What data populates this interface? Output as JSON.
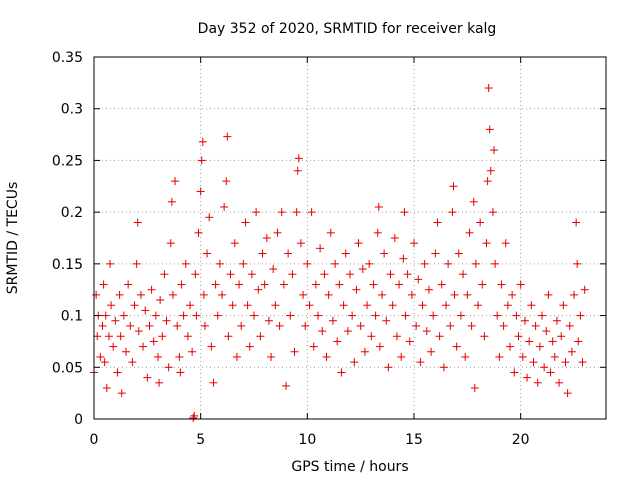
{
  "chart_data": {
    "type": "scatter",
    "title": "Day 352 of 2020, SRMTID for receiver kalg",
    "xlabel": "GPS time / hours",
    "ylabel": "SRMTID / TECUs",
    "xlim": [
      0,
      24
    ],
    "ylim": [
      0,
      0.35
    ],
    "x_ticks": [
      0,
      5,
      10,
      15,
      20
    ],
    "x_tick_labels": [
      "0",
      "5",
      "10",
      "15",
      "20"
    ],
    "y_ticks": [
      0,
      0.05,
      0.1,
      0.15,
      0.2,
      0.25,
      0.3,
      0.35
    ],
    "y_tick_labels": [
      "0",
      "0.05",
      "0.1",
      "0.15",
      "0.2",
      "0.25",
      "0.3",
      "0.35"
    ],
    "grid": true,
    "marker": "plus",
    "color": "#e00000",
    "series": [
      {
        "points": [
          [
            0.0,
            0.045
          ],
          [
            0.1,
            0.12
          ],
          [
            0.15,
            0.08
          ],
          [
            0.2,
            0.1
          ],
          [
            0.3,
            0.06
          ],
          [
            0.4,
            0.09
          ],
          [
            0.45,
            0.13
          ],
          [
            0.5,
            0.055
          ],
          [
            0.55,
            0.1
          ],
          [
            0.6,
            0.03
          ],
          [
            0.7,
            0.08
          ],
          [
            0.75,
            0.15
          ],
          [
            0.8,
            0.11
          ],
          [
            0.9,
            0.07
          ],
          [
            1.0,
            0.095
          ],
          [
            1.1,
            0.045
          ],
          [
            1.2,
            0.12
          ],
          [
            1.25,
            0.08
          ],
          [
            1.3,
            0.025
          ],
          [
            1.4,
            0.1
          ],
          [
            1.5,
            0.065
          ],
          [
            1.6,
            0.13
          ],
          [
            1.7,
            0.09
          ],
          [
            1.8,
            0.055
          ],
          [
            1.9,
            0.11
          ],
          [
            2.0,
            0.15
          ],
          [
            2.05,
            0.19
          ],
          [
            2.1,
            0.085
          ],
          [
            2.2,
            0.12
          ],
          [
            2.3,
            0.07
          ],
          [
            2.4,
            0.105
          ],
          [
            2.5,
            0.04
          ],
          [
            2.6,
            0.09
          ],
          [
            2.7,
            0.125
          ],
          [
            2.8,
            0.075
          ],
          [
            2.9,
            0.1
          ],
          [
            3.0,
            0.06
          ],
          [
            3.05,
            0.035
          ],
          [
            3.1,
            0.115
          ],
          [
            3.2,
            0.08
          ],
          [
            3.3,
            0.14
          ],
          [
            3.4,
            0.095
          ],
          [
            3.5,
            0.05
          ],
          [
            3.6,
            0.17
          ],
          [
            3.65,
            0.21
          ],
          [
            3.7,
            0.12
          ],
          [
            3.8,
            0.23
          ],
          [
            3.9,
            0.09
          ],
          [
            4.0,
            0.06
          ],
          [
            4.05,
            0.045
          ],
          [
            4.1,
            0.13
          ],
          [
            4.2,
            0.1
          ],
          [
            4.3,
            0.15
          ],
          [
            4.4,
            0.08
          ],
          [
            4.5,
            0.11
          ],
          [
            4.6,
            0.065
          ],
          [
            4.65,
            0.001
          ],
          [
            4.7,
            0.003
          ],
          [
            4.75,
            0.14
          ],
          [
            4.8,
            0.1
          ],
          [
            4.9,
            0.18
          ],
          [
            5.0,
            0.22
          ],
          [
            5.05,
            0.25
          ],
          [
            5.1,
            0.268
          ],
          [
            5.15,
            0.12
          ],
          [
            5.2,
            0.09
          ],
          [
            5.3,
            0.16
          ],
          [
            5.4,
            0.195
          ],
          [
            5.5,
            0.07
          ],
          [
            5.6,
            0.035
          ],
          [
            5.7,
            0.13
          ],
          [
            5.8,
            0.1
          ],
          [
            5.9,
            0.15
          ],
          [
            6.0,
            0.12
          ],
          [
            6.1,
            0.205
          ],
          [
            6.2,
            0.23
          ],
          [
            6.25,
            0.273
          ],
          [
            6.3,
            0.08
          ],
          [
            6.4,
            0.14
          ],
          [
            6.5,
            0.11
          ],
          [
            6.6,
            0.17
          ],
          [
            6.7,
            0.06
          ],
          [
            6.8,
            0.13
          ],
          [
            6.9,
            0.09
          ],
          [
            7.0,
            0.15
          ],
          [
            7.1,
            0.19
          ],
          [
            7.2,
            0.11
          ],
          [
            7.3,
            0.07
          ],
          [
            7.4,
            0.14
          ],
          [
            7.5,
            0.1
          ],
          [
            7.6,
            0.2
          ],
          [
            7.7,
            0.125
          ],
          [
            7.8,
            0.08
          ],
          [
            7.9,
            0.16
          ],
          [
            8.0,
            0.13
          ],
          [
            8.1,
            0.175
          ],
          [
            8.2,
            0.095
          ],
          [
            8.3,
            0.06
          ],
          [
            8.4,
            0.145
          ],
          [
            8.5,
            0.11
          ],
          [
            8.6,
            0.18
          ],
          [
            8.7,
            0.09
          ],
          [
            8.8,
            0.2
          ],
          [
            8.9,
            0.13
          ],
          [
            9.0,
            0.032
          ],
          [
            9.1,
            0.16
          ],
          [
            9.2,
            0.1
          ],
          [
            9.3,
            0.14
          ],
          [
            9.4,
            0.065
          ],
          [
            9.5,
            0.2
          ],
          [
            9.55,
            0.24
          ],
          [
            9.6,
            0.252
          ],
          [
            9.7,
            0.17
          ],
          [
            9.8,
            0.12
          ],
          [
            9.9,
            0.09
          ],
          [
            10.0,
            0.15
          ],
          [
            10.1,
            0.11
          ],
          [
            10.2,
            0.2
          ],
          [
            10.3,
            0.07
          ],
          [
            10.4,
            0.13
          ],
          [
            10.5,
            0.1
          ],
          [
            10.6,
            0.165
          ],
          [
            10.7,
            0.085
          ],
          [
            10.8,
            0.14
          ],
          [
            10.9,
            0.06
          ],
          [
            11.0,
            0.12
          ],
          [
            11.1,
            0.18
          ],
          [
            11.2,
            0.095
          ],
          [
            11.3,
            0.15
          ],
          [
            11.4,
            0.075
          ],
          [
            11.5,
            0.13
          ],
          [
            11.6,
            0.045
          ],
          [
            11.7,
            0.11
          ],
          [
            11.8,
            0.16
          ],
          [
            11.9,
            0.085
          ],
          [
            12.0,
            0.14
          ],
          [
            12.1,
            0.1
          ],
          [
            12.2,
            0.055
          ],
          [
            12.3,
            0.125
          ],
          [
            12.4,
            0.17
          ],
          [
            12.5,
            0.09
          ],
          [
            12.6,
            0.145
          ],
          [
            12.7,
            0.065
          ],
          [
            12.8,
            0.11
          ],
          [
            12.9,
            0.15
          ],
          [
            13.0,
            0.08
          ],
          [
            13.1,
            0.13
          ],
          [
            13.2,
            0.1
          ],
          [
            13.3,
            0.18
          ],
          [
            13.35,
            0.205
          ],
          [
            13.4,
            0.07
          ],
          [
            13.5,
            0.12
          ],
          [
            13.6,
            0.16
          ],
          [
            13.7,
            0.095
          ],
          [
            13.8,
            0.05
          ],
          [
            13.9,
            0.14
          ],
          [
            14.0,
            0.11
          ],
          [
            14.1,
            0.175
          ],
          [
            14.2,
            0.08
          ],
          [
            14.3,
            0.13
          ],
          [
            14.4,
            0.06
          ],
          [
            14.5,
            0.155
          ],
          [
            14.55,
            0.2
          ],
          [
            14.6,
            0.1
          ],
          [
            14.7,
            0.14
          ],
          [
            14.8,
            0.075
          ],
          [
            14.9,
            0.12
          ],
          [
            15.0,
            0.17
          ],
          [
            15.1,
            0.09
          ],
          [
            15.2,
            0.135
          ],
          [
            15.3,
            0.055
          ],
          [
            15.4,
            0.11
          ],
          [
            15.5,
            0.15
          ],
          [
            15.6,
            0.085
          ],
          [
            15.7,
            0.125
          ],
          [
            15.8,
            0.065
          ],
          [
            15.9,
            0.1
          ],
          [
            16.0,
            0.16
          ],
          [
            16.1,
            0.19
          ],
          [
            16.2,
            0.08
          ],
          [
            16.3,
            0.13
          ],
          [
            16.4,
            0.05
          ],
          [
            16.5,
            0.11
          ],
          [
            16.6,
            0.15
          ],
          [
            16.7,
            0.09
          ],
          [
            16.8,
            0.2
          ],
          [
            16.85,
            0.225
          ],
          [
            16.9,
            0.12
          ],
          [
            17.0,
            0.07
          ],
          [
            17.1,
            0.16
          ],
          [
            17.2,
            0.1
          ],
          [
            17.3,
            0.14
          ],
          [
            17.4,
            0.06
          ],
          [
            17.5,
            0.12
          ],
          [
            17.6,
            0.18
          ],
          [
            17.7,
            0.09
          ],
          [
            17.8,
            0.21
          ],
          [
            17.85,
            0.03
          ],
          [
            17.9,
            0.15
          ],
          [
            18.0,
            0.11
          ],
          [
            18.1,
            0.19
          ],
          [
            18.2,
            0.13
          ],
          [
            18.3,
            0.08
          ],
          [
            18.4,
            0.17
          ],
          [
            18.45,
            0.23
          ],
          [
            18.5,
            0.32
          ],
          [
            18.55,
            0.28
          ],
          [
            18.6,
            0.24
          ],
          [
            18.7,
            0.2
          ],
          [
            18.75,
            0.26
          ],
          [
            18.8,
            0.15
          ],
          [
            18.9,
            0.1
          ],
          [
            19.0,
            0.06
          ],
          [
            19.1,
            0.13
          ],
          [
            19.2,
            0.09
          ],
          [
            19.3,
            0.17
          ],
          [
            19.4,
            0.11
          ],
          [
            19.5,
            0.07
          ],
          [
            19.6,
            0.12
          ],
          [
            19.7,
            0.045
          ],
          [
            19.8,
            0.1
          ],
          [
            19.9,
            0.08
          ],
          [
            20.0,
            0.13
          ],
          [
            20.1,
            0.06
          ],
          [
            20.2,
            0.095
          ],
          [
            20.3,
            0.04
          ],
          [
            20.4,
            0.075
          ],
          [
            20.5,
            0.11
          ],
          [
            20.6,
            0.055
          ],
          [
            20.7,
            0.09
          ],
          [
            20.8,
            0.035
          ],
          [
            20.9,
            0.07
          ],
          [
            21.0,
            0.1
          ],
          [
            21.1,
            0.05
          ],
          [
            21.2,
            0.085
          ],
          [
            21.3,
            0.12
          ],
          [
            21.4,
            0.045
          ],
          [
            21.5,
            0.075
          ],
          [
            21.6,
            0.06
          ],
          [
            21.7,
            0.095
          ],
          [
            21.8,
            0.035
          ],
          [
            21.9,
            0.08
          ],
          [
            22.0,
            0.11
          ],
          [
            22.1,
            0.055
          ],
          [
            22.2,
            0.025
          ],
          [
            22.3,
            0.09
          ],
          [
            22.4,
            0.065
          ],
          [
            22.5,
            0.12
          ],
          [
            22.6,
            0.19
          ],
          [
            22.65,
            0.15
          ],
          [
            22.7,
            0.075
          ],
          [
            22.8,
            0.1
          ],
          [
            22.9,
            0.055
          ],
          [
            23.0,
            0.125
          ]
        ]
      }
    ]
  }
}
